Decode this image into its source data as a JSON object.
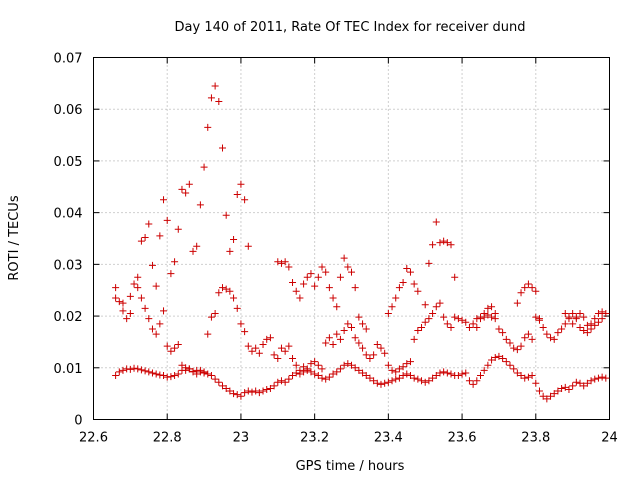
{
  "chart_data": {
    "type": "scatter",
    "title": "Day 140 of 2011, Rate Of TEC Index for receiver dund",
    "xlabel": "GPS time / hours",
    "ylabel": "ROTI / TECUs",
    "xlim": [
      22.6,
      24.0
    ],
    "ylim": [
      0,
      0.07
    ],
    "xticks": [
      "22.6",
      "22.8",
      "23",
      "23.2",
      "23.4",
      "23.6",
      "23.8",
      "24"
    ],
    "yticks": [
      "0",
      "0.01",
      "0.02",
      "0.03",
      "0.04",
      "0.05",
      "0.06",
      "0.07"
    ],
    "grid": true,
    "marker": "+",
    "color": "#cc0000",
    "series": [
      {
        "x": [
          22.66,
          22.67,
          22.68,
          22.69,
          22.7,
          22.71,
          22.72,
          22.73,
          22.74,
          22.75,
          22.76,
          22.77,
          22.78,
          22.79,
          22.8,
          22.81,
          22.82,
          22.83,
          22.84,
          22.85,
          22.86,
          22.87,
          22.88,
          22.89,
          22.9,
          22.91,
          22.92,
          22.93,
          22.94,
          22.95,
          22.96,
          22.97,
          22.98,
          22.99,
          23.0,
          23.01,
          23.02,
          23.03,
          23.04,
          23.05,
          23.06,
          23.07,
          23.08,
          23.09,
          23.1,
          23.11,
          23.12,
          23.13,
          23.14,
          23.15,
          23.16,
          23.17,
          23.18,
          23.19,
          23.2,
          23.21,
          23.22,
          23.23,
          23.24,
          23.25,
          23.26,
          23.27,
          23.28,
          23.29,
          23.3,
          23.31,
          23.32,
          23.33,
          23.34,
          23.35,
          23.36,
          23.37,
          23.38,
          23.39,
          23.4,
          23.41,
          23.42,
          23.43,
          23.44,
          23.45,
          23.46,
          23.47,
          23.48,
          23.49,
          23.5,
          23.51,
          23.52,
          23.53,
          23.54,
          23.55,
          23.56,
          23.57,
          23.58,
          23.59,
          23.6,
          23.61,
          23.62,
          23.63,
          23.64,
          23.65,
          23.66,
          23.67,
          23.68,
          23.69,
          23.7,
          23.71,
          23.72,
          23.73,
          23.74,
          23.75,
          23.76,
          23.77,
          23.78,
          23.79,
          23.8,
          23.81,
          23.82,
          23.83,
          23.84,
          23.85,
          23.86,
          23.87,
          23.88,
          23.89,
          23.9,
          23.91,
          23.92,
          23.93,
          23.94,
          23.95,
          23.96,
          23.97,
          23.98,
          23.99
        ],
        "y": [
          0.0085,
          0.0092,
          0.0095,
          0.0098,
          0.0097,
          0.0099,
          0.0098,
          0.0096,
          0.0094,
          0.0092,
          0.009,
          0.0088,
          0.0086,
          0.0085,
          0.0082,
          0.0083,
          0.0085,
          0.0088,
          0.0095,
          0.01,
          0.0098,
          0.0093,
          0.0095,
          0.0092,
          0.009,
          0.0088,
          0.0085,
          0.0078,
          0.0072,
          0.0065,
          0.006,
          0.0055,
          0.005,
          0.0048,
          0.0045,
          0.0052,
          0.0055,
          0.0053,
          0.0055,
          0.0052,
          0.0055,
          0.0058,
          0.006,
          0.0065,
          0.0072,
          0.0075,
          0.0072,
          0.0078,
          0.0085,
          0.009,
          0.0088,
          0.0092,
          0.0095,
          0.0092,
          0.0088,
          0.0085,
          0.008,
          0.0078,
          0.0082,
          0.0088,
          0.0092,
          0.0098,
          0.0105,
          0.0108,
          0.0105,
          0.01,
          0.0095,
          0.009,
          0.0085,
          0.008,
          0.0075,
          0.007,
          0.0068,
          0.007,
          0.0072,
          0.0075,
          0.0078,
          0.008,
          0.0085,
          0.0088,
          0.0085,
          0.008,
          0.0078,
          0.0075,
          0.0072,
          0.0075,
          0.008,
          0.0085,
          0.009,
          0.0092,
          0.009,
          0.0088,
          0.0085,
          0.0085,
          0.0088,
          0.009,
          0.0075,
          0.0068,
          0.0075,
          0.0085,
          0.0095,
          0.0105,
          0.0115,
          0.012,
          0.0122,
          0.0118,
          0.0112,
          0.0105,
          0.0098,
          0.009,
          0.0085,
          0.008,
          0.0082,
          0.0085,
          0.007,
          0.0055,
          0.0045,
          0.004,
          0.0045,
          0.005,
          0.0055,
          0.006,
          0.0062,
          0.0058,
          0.0065,
          0.0072,
          0.007,
          0.0065,
          0.007,
          0.0075,
          0.0078,
          0.008,
          0.0082,
          0.008
        ]
      },
      {
        "x": [
          22.66,
          22.67,
          22.68,
          22.69,
          22.7,
          22.71,
          22.72,
          22.73,
          22.74,
          22.75,
          22.76,
          22.77,
          22.78,
          22.79,
          22.8,
          22.81,
          22.82,
          22.83,
          22.84,
          22.85,
          22.86,
          22.87,
          22.88,
          22.89,
          22.9,
          22.91,
          22.92,
          22.93,
          22.94,
          22.95,
          22.96,
          22.97,
          22.98,
          22.99,
          23.0,
          23.01,
          23.02,
          23.03,
          23.04,
          23.05,
          23.06,
          23.07,
          23.08,
          23.09,
          23.1,
          23.11,
          23.12,
          23.13,
          23.14,
          23.15,
          23.16,
          23.17,
          23.18,
          23.19,
          23.2,
          23.21,
          23.22,
          23.23,
          23.24,
          23.25,
          23.26,
          23.27,
          23.28,
          23.29,
          23.3,
          23.31,
          23.32,
          23.33,
          23.34,
          23.35,
          23.36,
          23.37,
          23.38,
          23.39,
          23.4,
          23.41,
          23.42,
          23.43,
          23.44,
          23.45,
          23.46,
          23.47,
          23.48,
          23.49,
          23.5,
          23.51,
          23.52,
          23.53,
          23.54,
          23.55,
          23.56,
          23.57,
          23.58,
          23.59,
          23.6,
          23.61,
          23.62,
          23.63,
          23.64,
          23.65,
          23.66,
          23.67,
          23.68,
          23.69,
          23.7,
          23.71,
          23.72,
          23.73,
          23.74,
          23.75,
          23.76,
          23.77,
          23.78,
          23.79,
          23.8,
          23.81,
          23.82,
          23.83,
          23.84,
          23.85,
          23.86,
          23.87,
          23.88,
          23.89,
          23.9,
          23.91,
          23.92,
          23.93,
          23.94,
          23.95,
          23.96,
          23.97,
          23.98,
          23.99
        ],
        "y": [
          0.0235,
          0.0228,
          0.021,
          0.0195,
          0.0238,
          0.0262,
          0.0275,
          0.0235,
          0.0215,
          0.0195,
          0.0175,
          0.0165,
          0.0185,
          0.021,
          0.0142,
          0.0132,
          0.0138,
          0.0145,
          0.0105,
          0.0095,
          0.0098,
          0.0092,
          0.0088,
          0.0095,
          0.0092,
          0.0165,
          0.0198,
          0.0205,
          0.0245,
          0.0255,
          0.0252,
          0.0248,
          0.0235,
          0.0215,
          0.0185,
          0.017,
          0.0142,
          0.0132,
          0.0138,
          0.0128,
          0.0145,
          0.0155,
          0.0158,
          0.0125,
          0.0118,
          0.0138,
          0.0132,
          0.0142,
          0.0118,
          0.0105,
          0.0095,
          0.0102,
          0.0098,
          0.0108,
          0.0112,
          0.0105,
          0.0098,
          0.0148,
          0.0158,
          0.0145,
          0.0165,
          0.0155,
          0.0172,
          0.0185,
          0.0178,
          0.0158,
          0.0148,
          0.0138,
          0.0125,
          0.0118,
          0.0125,
          0.0145,
          0.0138,
          0.0128,
          0.0105,
          0.0095,
          0.0092,
          0.0098,
          0.0102,
          0.0108,
          0.0112,
          0.0155,
          0.0172,
          0.0178,
          0.0188,
          0.0195,
          0.0205,
          0.0218,
          0.0225,
          0.0198,
          0.0185,
          0.0178,
          0.0198,
          0.0195,
          0.0192,
          0.0188,
          0.0178,
          0.0185,
          0.0195,
          0.0198,
          0.0205,
          0.0215,
          0.0218,
          0.0205,
          0.0175,
          0.0168,
          0.0155,
          0.0148,
          0.0138,
          0.0135,
          0.0142,
          0.0158,
          0.0165,
          0.0155,
          0.0198,
          0.0192,
          0.0178,
          0.0165,
          0.0158,
          0.0155,
          0.0168,
          0.0175,
          0.0185,
          0.0195,
          0.0205,
          0.0198,
          0.0178,
          0.0172,
          0.0168,
          0.0175,
          0.0182,
          0.0188,
          0.0195,
          0.0205
        ]
      },
      {
        "x": [
          22.66,
          22.68,
          22.7,
          22.72,
          22.73,
          22.74,
          22.75,
          22.76,
          22.77,
          22.78,
          22.79,
          22.8,
          22.81,
          22.82,
          22.83,
          22.84,
          22.85,
          22.86,
          22.87,
          22.88,
          22.89,
          22.9,
          22.91,
          22.92,
          22.93,
          22.94,
          22.95,
          22.96,
          22.97,
          22.98,
          22.99,
          23.0,
          23.01,
          23.02,
          23.1,
          23.11,
          23.12,
          23.13,
          23.14,
          23.15,
          23.16,
          23.17,
          23.18,
          23.19,
          23.2,
          23.21,
          23.22,
          23.23,
          23.24,
          23.25,
          23.26,
          23.27,
          23.28,
          23.29,
          23.3,
          23.31,
          23.32,
          23.33,
          23.34,
          23.4,
          23.41,
          23.42,
          23.43,
          23.44,
          23.45,
          23.46,
          23.47,
          23.48,
          23.5,
          23.51,
          23.52,
          23.53,
          23.54,
          23.55,
          23.56,
          23.57,
          23.58,
          23.64,
          23.65,
          23.66,
          23.67,
          23.68,
          23.69,
          23.75,
          23.76,
          23.77,
          23.78,
          23.79,
          23.8,
          23.81,
          23.88,
          23.89,
          23.9,
          23.91,
          23.92,
          23.93,
          23.94,
          23.95,
          23.96,
          23.97,
          23.98
        ],
        "y": [
          0.0255,
          0.0225,
          0.0205,
          0.0255,
          0.0345,
          0.0352,
          0.0378,
          0.0298,
          0.0258,
          0.0355,
          0.0425,
          0.0385,
          0.0282,
          0.0305,
          0.0368,
          0.0445,
          0.0438,
          0.0455,
          0.0325,
          0.0335,
          0.0415,
          0.0488,
          0.0565,
          0.0622,
          0.0645,
          0.0615,
          0.0525,
          0.0395,
          0.0325,
          0.0348,
          0.0435,
          0.0455,
          0.0425,
          0.0335,
          0.0305,
          0.0302,
          0.0305,
          0.0295,
          0.0265,
          0.0248,
          0.0235,
          0.0262,
          0.0275,
          0.0282,
          0.0258,
          0.0275,
          0.0295,
          0.0285,
          0.0255,
          0.0235,
          0.0218,
          0.0275,
          0.0312,
          0.0295,
          0.0285,
          0.0255,
          0.0198,
          0.0185,
          0.0175,
          0.0205,
          0.0218,
          0.0235,
          0.0255,
          0.0265,
          0.0292,
          0.0285,
          0.0262,
          0.0248,
          0.0222,
          0.0302,
          0.0338,
          0.0382,
          0.0342,
          0.0345,
          0.0342,
          0.0338,
          0.0275,
          0.0178,
          0.0195,
          0.0198,
          0.0202,
          0.0198,
          0.0195,
          0.0225,
          0.0245,
          0.0255,
          0.0262,
          0.0255,
          0.0248,
          0.0195,
          0.0205,
          0.0198,
          0.0185,
          0.0195,
          0.0205,
          0.0198,
          0.0182,
          0.0185,
          0.0195,
          0.0205,
          0.0208
        ]
      }
    ]
  }
}
